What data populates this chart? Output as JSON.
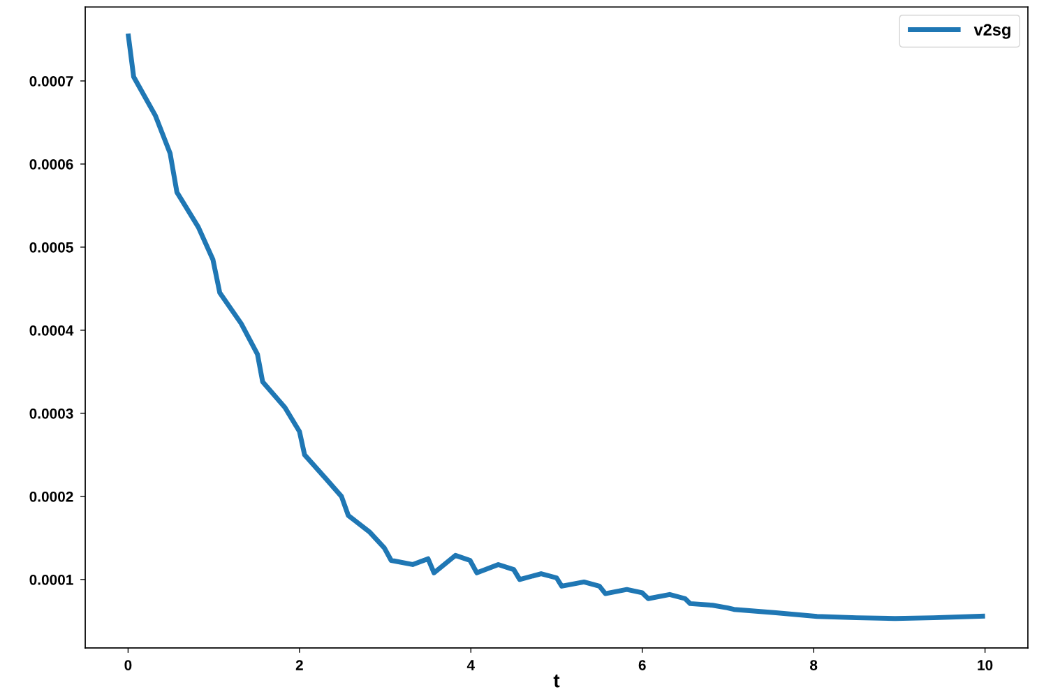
{
  "chart_data": {
    "type": "line",
    "xlabel": "t",
    "series": [
      {
        "name": "v2sg",
        "color": "#1f77b4",
        "x": [
          0,
          0.065,
          0.32,
          0.49,
          0.57,
          0.82,
          0.99,
          1.07,
          1.32,
          1.51,
          1.57,
          1.83,
          2.0,
          2.06,
          2.32,
          2.49,
          2.57,
          2.82,
          2.99,
          3.07,
          3.32,
          3.5,
          3.57,
          3.82,
          3.99,
          4.07,
          4.32,
          4.5,
          4.57,
          4.82,
          5.0,
          5.06,
          5.32,
          5.5,
          5.57,
          5.82,
          6.0,
          6.07,
          6.32,
          6.5,
          6.56,
          6.82,
          6.99,
          7.07,
          7.56,
          8.04,
          8.5,
          8.95,
          9.4,
          10.0
        ],
        "values": [
          0.000757,
          0.000705,
          0.000658,
          0.000613,
          0.000566,
          0.000524,
          0.000485,
          0.000445,
          0.000408,
          0.000371,
          0.000338,
          0.000307,
          0.000278,
          0.00025,
          0.00022,
          0.0002,
          0.000177,
          0.000157,
          0.000138,
          0.000123,
          0.000118,
          0.000125,
          0.000108,
          0.000129,
          0.000123,
          0.000108,
          0.000118,
          0.000112,
          0.0001,
          0.000107,
          0.000102,
          9.2e-05,
          9.7e-05,
          9.2e-05,
          8.3e-05,
          8.8e-05,
          8.4e-05,
          7.7e-05,
          8.2e-05,
          7.7e-05,
          7.1e-05,
          6.9e-05,
          6.6e-05,
          6.4e-05,
          6e-05,
          5.55e-05,
          5.4e-05,
          5.3e-05,
          5.4e-05,
          5.6e-05
        ]
      }
    ],
    "xlim": [
      -0.5,
      10.5
    ],
    "xticks": [
      0,
      2,
      4,
      6,
      8,
      10
    ],
    "ylim": [
      1.76e-05,
      0.000789
    ],
    "yticks": [
      0.0001,
      0.0002,
      0.0003,
      0.0004,
      0.0005,
      0.0006,
      0.0007
    ],
    "legend": "top right",
    "line_style": "solid"
  }
}
